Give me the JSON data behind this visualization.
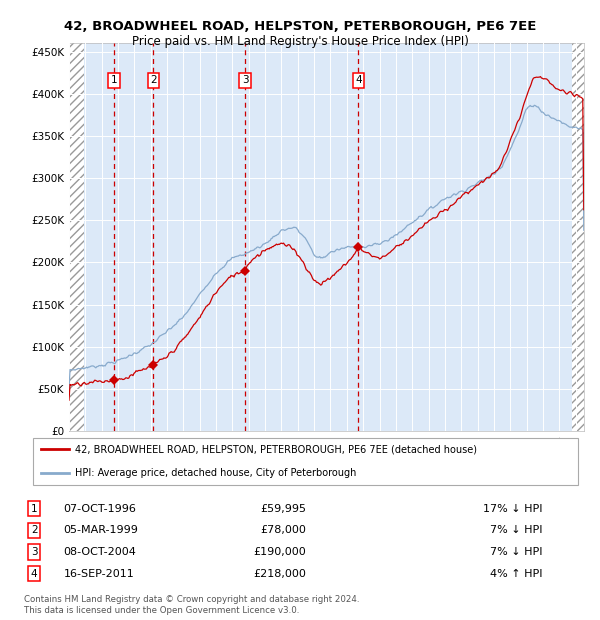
{
  "title_line1": "42, BROADWHEEL ROAD, HELPSTON, PETERBOROUGH, PE6 7EE",
  "title_line2": "Price paid vs. HM Land Registry's House Price Index (HPI)",
  "legend_red": "42, BROADWHEEL ROAD, HELPSTON, PETERBOROUGH, PE6 7EE (detached house)",
  "legend_blue": "HPI: Average price, detached house, City of Peterborough",
  "footer_line1": "Contains HM Land Registry data © Crown copyright and database right 2024.",
  "footer_line2": "This data is licensed under the Open Government Licence v3.0.",
  "transactions": [
    {
      "num": 1,
      "date": "07-OCT-1996",
      "price": 59995,
      "pct": "17%",
      "dir": "↓",
      "year": 1996.77
    },
    {
      "num": 2,
      "date": "05-MAR-1999",
      "price": 78000,
      "pct": "7%",
      "dir": "↓",
      "year": 1999.17
    },
    {
      "num": 3,
      "date": "08-OCT-2004",
      "price": 190000,
      "pct": "7%",
      "dir": "↓",
      "year": 2004.77
    },
    {
      "num": 4,
      "date": "16-SEP-2011",
      "price": 218000,
      "pct": "4%",
      "dir": "↑",
      "year": 2011.71
    }
  ],
  "background_color": "#ffffff",
  "plot_bg_color": "#dce9f8",
  "grid_color": "#ffffff",
  "red_line_color": "#cc0000",
  "blue_line_color": "#88aacc",
  "dashed_line_color": "#cc0000",
  "ylim": [
    0,
    460000
  ],
  "xlim_start": 1994.0,
  "xlim_end": 2025.5,
  "yticks": [
    0,
    50000,
    100000,
    150000,
    200000,
    250000,
    300000,
    350000,
    400000,
    450000
  ],
  "hatch_left_end": 1994.9,
  "hatch_right_start": 2024.75
}
